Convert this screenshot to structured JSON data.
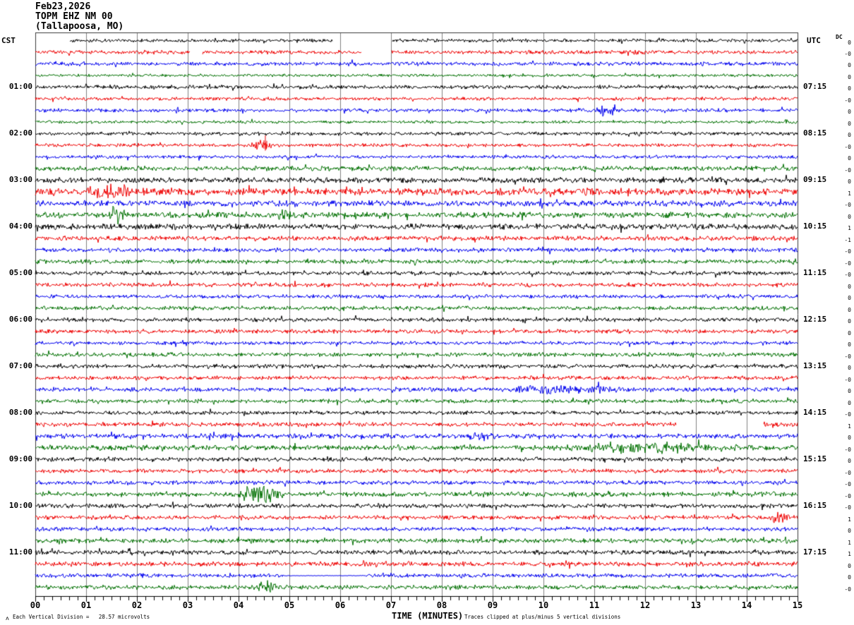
{
  "header": {
    "date": "Feb23,2026",
    "station": "TOPM EHZ NM 00",
    "location": "(Tallapoosa, MO)"
  },
  "axes": {
    "left_tz": "CST",
    "right_tz": "UTC",
    "dc_header": "DC",
    "x_title": "TIME (MINUTES)"
  },
  "footer": {
    "corner_mark": "ʌ",
    "scale_note": "Each Vertical Division =   28.57 microvolts",
    "clip_note": "Traces clipped at plus/minus 5 vertical divisions"
  },
  "chart_data": {
    "type": "line",
    "title": "TOPM EHZ NM 00 (Tallapoosa, MO) helicorder, Feb23,2026",
    "xlabel": "TIME (MINUTES)",
    "x_range": [
      0,
      15
    ],
    "minutes_per_row": 15,
    "minor_ticks_per_minute": 6,
    "x_ticks": [
      "00",
      "01",
      "02",
      "03",
      "04",
      "05",
      "06",
      "07",
      "08",
      "09",
      "10",
      "11",
      "12",
      "13",
      "14",
      "15"
    ],
    "microvolts_per_division": "28.57",
    "clip_divisions": 5,
    "colors": {
      "trace_cycle": [
        "#000000",
        "#ee0000",
        "#0000ee",
        "#007000"
      ],
      "grid": "#808080",
      "border": "#3a3a3a"
    },
    "legend": "rows cycle black/red/blue/green, one row = 15 minutes",
    "rows": [
      {
        "dc": "0",
        "amp": 1.4,
        "events": [
          {
            "type": "gap",
            "t0": 0,
            "t1": 0.68
          },
          {
            "type": "gap",
            "t0": 5.85,
            "t1": 7.02
          }
        ]
      },
      {
        "dc": "-0",
        "amp": 1.6,
        "events": [
          {
            "type": "gap",
            "t0": 3.05,
            "t1": 3.28
          },
          {
            "type": "gap",
            "t0": 6.42,
            "t1": 7.0
          }
        ]
      },
      {
        "dc": "0",
        "amp": 1.6,
        "events": []
      },
      {
        "dc": "0",
        "amp": 1.2,
        "events": []
      },
      {
        "dc": "0",
        "amp": 1.6,
        "left_label": "01:00",
        "right_label": "07:15",
        "events": []
      },
      {
        "dc": "-0",
        "amp": 1.4,
        "events": []
      },
      {
        "dc": "0",
        "amp": 1.5,
        "events": [
          {
            "type": "burst",
            "t0": 11.0,
            "t1": 11.45,
            "amp": 5
          }
        ]
      },
      {
        "dc": "0",
        "amp": 1.2,
        "events": []
      },
      {
        "dc": "0",
        "amp": 1.5,
        "left_label": "02:00",
        "right_label": "08:15",
        "events": []
      },
      {
        "dc": "-0",
        "amp": 1.4,
        "events": [
          {
            "type": "burst",
            "t0": 4.15,
            "t1": 4.7,
            "amp": 4
          },
          {
            "type": "spike",
            "t0": 4.52,
            "amp": 14
          }
        ]
      },
      {
        "dc": "0",
        "amp": 1.4,
        "events": []
      },
      {
        "dc": "-0",
        "amp": 2.0,
        "events": []
      },
      {
        "dc": "0",
        "amp": 2.2,
        "left_label": "03:00",
        "right_label": "09:15",
        "events": []
      },
      {
        "dc": "1",
        "amp": 2.8,
        "events": [
          {
            "type": "burst",
            "t0": 0.9,
            "t1": 2.1,
            "amp": 3.5
          }
        ]
      },
      {
        "dc": "-0",
        "amp": 2.4,
        "events": []
      },
      {
        "dc": "0",
        "amp": 2.4,
        "events": [
          {
            "type": "burst",
            "t0": 1.4,
            "t1": 1.85,
            "amp": 4.5
          },
          {
            "type": "burst",
            "t0": 4.75,
            "t1": 5.15,
            "amp": 3
          }
        ]
      },
      {
        "dc": "1",
        "amp": 2.4,
        "left_label": "04:00",
        "right_label": "10:15",
        "events": []
      },
      {
        "dc": "-1",
        "amp": 1.9,
        "events": []
      },
      {
        "dc": "-0",
        "amp": 1.7,
        "events": []
      },
      {
        "dc": "-0",
        "amp": 1.7,
        "events": []
      },
      {
        "dc": "-0",
        "amp": 1.7,
        "left_label": "05:00",
        "right_label": "11:15",
        "events": []
      },
      {
        "dc": "0",
        "amp": 1.7,
        "events": []
      },
      {
        "dc": "0",
        "amp": 1.5,
        "events": []
      },
      {
        "dc": "0",
        "amp": 1.7,
        "events": []
      },
      {
        "dc": "0",
        "amp": 1.7,
        "left_label": "06:00",
        "right_label": "12:15",
        "events": []
      },
      {
        "dc": "0",
        "amp": 1.7,
        "events": []
      },
      {
        "dc": "0",
        "amp": 1.5,
        "events": []
      },
      {
        "dc": "-0",
        "amp": 1.7,
        "events": []
      },
      {
        "dc": "0",
        "amp": 1.7,
        "left_label": "07:00",
        "right_label": "13:15",
        "events": []
      },
      {
        "dc": "-0",
        "amp": 1.6,
        "events": []
      },
      {
        "dc": "0",
        "amp": 1.7,
        "events": [
          {
            "type": "burst",
            "t0": 9.0,
            "t1": 11.7,
            "amp": 2.2
          }
        ]
      },
      {
        "dc": "0",
        "amp": 1.6,
        "events": []
      },
      {
        "dc": "-0",
        "amp": 1.6,
        "left_label": "08:00",
        "right_label": "14:15",
        "events": []
      },
      {
        "dc": "1",
        "amp": 1.7,
        "events": [
          {
            "type": "gap",
            "t0": 12.62,
            "t1": 14.32
          }
        ]
      },
      {
        "dc": "0",
        "amp": 2.0,
        "events": [
          {
            "type": "burst",
            "t0": 8.2,
            "t1": 9.2,
            "amp": 2
          }
        ]
      },
      {
        "dc": "-0",
        "amp": 2.2,
        "events": [
          {
            "type": "burst",
            "t0": 10.3,
            "t1": 13.6,
            "amp": 2.6
          }
        ]
      },
      {
        "dc": "0",
        "amp": 1.7,
        "left_label": "09:00",
        "right_label": "15:15",
        "events": []
      },
      {
        "dc": "-0",
        "amp": 1.7,
        "events": []
      },
      {
        "dc": "-0",
        "amp": 1.7,
        "events": []
      },
      {
        "dc": "-0",
        "amp": 2.0,
        "events": [
          {
            "type": "burst",
            "t0": 3.95,
            "t1": 4.9,
            "amp": 6
          },
          {
            "type": "spike",
            "t0": 4.3,
            "amp": 9
          }
        ]
      },
      {
        "dc": "-0",
        "amp": 1.8,
        "left_label": "10:00",
        "right_label": "16:15",
        "events": []
      },
      {
        "dc": "1",
        "amp": 1.7,
        "events": [
          {
            "type": "burst",
            "t0": 14.4,
            "t1": 14.85,
            "amp": 4.5
          }
        ]
      },
      {
        "dc": "0",
        "amp": 1.7,
        "events": []
      },
      {
        "dc": "1",
        "amp": 1.9,
        "events": []
      },
      {
        "dc": "1",
        "amp": 1.9,
        "left_label": "11:00",
        "right_label": "17:15",
        "events": []
      },
      {
        "dc": "0",
        "amp": 1.9,
        "events": []
      },
      {
        "dc": "0",
        "amp": 1.7,
        "events": [
          {
            "type": "quiet",
            "t0": 4.9,
            "t1": 6.45,
            "amp": 0.25
          }
        ]
      },
      {
        "dc": "-0",
        "amp": 1.8,
        "events": [
          {
            "type": "burst",
            "t0": 4.25,
            "t1": 4.85,
            "amp": 4.5
          }
        ]
      }
    ]
  }
}
